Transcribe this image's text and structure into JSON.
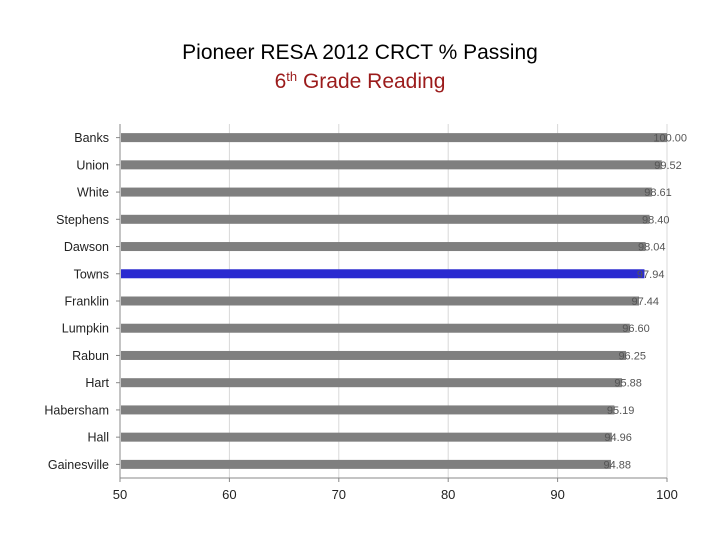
{
  "header": {
    "title": "Pioneer RESA 2012 CRCT % Passing",
    "subtitle_prefix": "6",
    "subtitle_sup": "th",
    "subtitle_suffix": " Grade Reading"
  },
  "colors": {
    "subtitle": "#9b1b1b",
    "bar_default": "#7f7f7f",
    "bar_highlight": "#2a2ad0",
    "grid": "#d8d8d8",
    "axis": "#888888"
  },
  "chart_data": {
    "type": "bar",
    "orientation": "horizontal",
    "title": "Pioneer RESA 2012 CRCT % Passing",
    "subtitle": "6th Grade Reading",
    "categories": [
      "Banks",
      "Union",
      "White",
      "Stephens",
      "Dawson",
      "Towns",
      "Franklin",
      "Lumpkin",
      "Rabun",
      "Hart",
      "Habersham",
      "Hall",
      "Gainesville"
    ],
    "values": [
      100.0,
      99.52,
      98.61,
      98.4,
      98.04,
      97.94,
      97.44,
      96.6,
      96.25,
      95.88,
      95.19,
      94.96,
      94.88
    ],
    "data_labels": [
      "100.00",
      "99.52",
      "98.61",
      "98.40",
      "98.04",
      "97.94",
      "97.44",
      "96.60",
      "96.25",
      "95.88",
      "95.19",
      "94.96",
      "94.88"
    ],
    "highlight": "Towns",
    "xlim": [
      50,
      100
    ],
    "xticks": [
      "50",
      "60",
      "70",
      "80",
      "90",
      "100"
    ],
    "grid": true,
    "legend": "none"
  }
}
